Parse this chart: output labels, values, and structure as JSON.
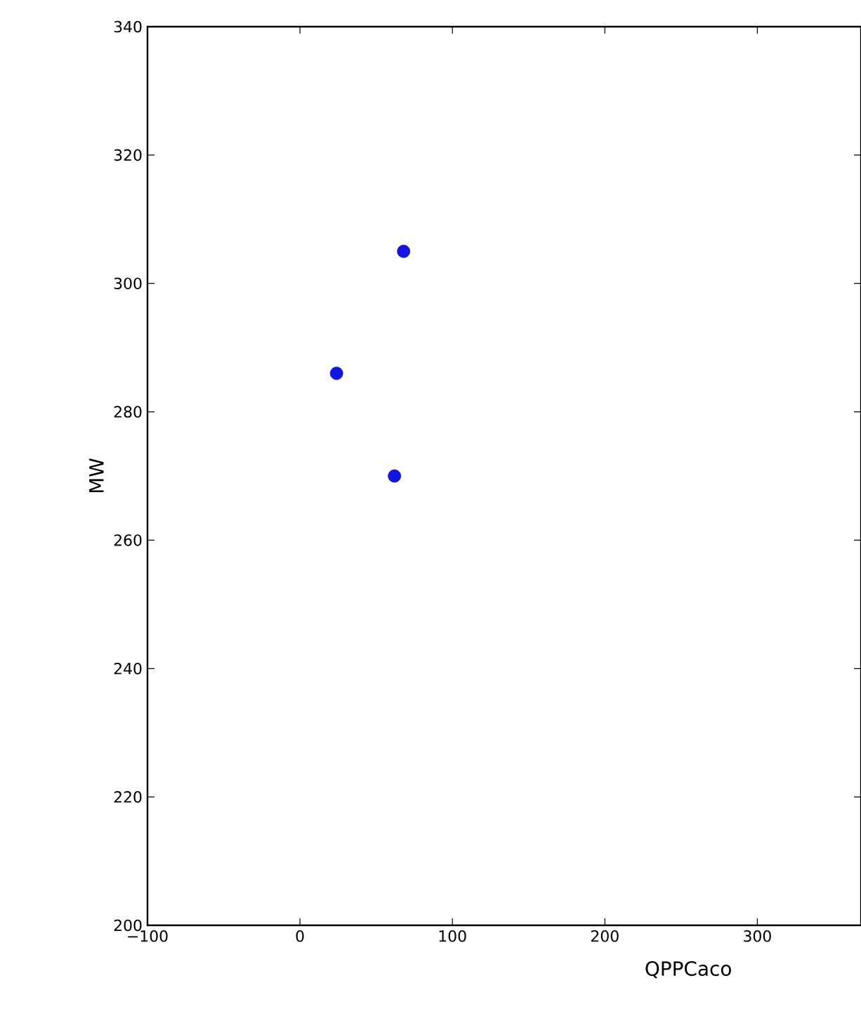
{
  "chart_data": {
    "type": "scatter",
    "xlabel": "QPPCaco",
    "ylabel": "MW",
    "x": [
      68,
      24,
      62
    ],
    "values": [
      305,
      286,
      270
    ],
    "color": "#1414e0",
    "marker": "circle",
    "xlim": [
      -100,
      368
    ],
    "ylim": [
      200,
      340
    ],
    "xticks": [
      {
        "value": -100,
        "label": "−100"
      },
      0,
      100,
      200,
      300
    ],
    "yticks": [
      200,
      220,
      240,
      260,
      280,
      300,
      320,
      340
    ],
    "grid": false
  }
}
